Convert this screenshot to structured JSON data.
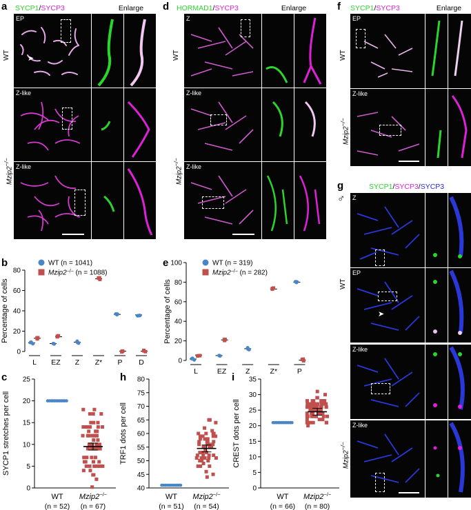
{
  "panel_letters": [
    "a",
    "b",
    "c",
    "d",
    "e",
    "f",
    "g",
    "h",
    "i"
  ],
  "headers": {
    "a": {
      "green": "SYCP1",
      "sep": "/",
      "magenta": "SYCP3",
      "enlarge": "Enlarge"
    },
    "d": {
      "green": "HORMAD1",
      "sep": "/",
      "magenta": "SYCP3",
      "enlarge": "Enlarge"
    },
    "f": {
      "green": "SYCP1",
      "sep": "/",
      "magenta": "SYCP3",
      "enlarge": "Enlarge"
    },
    "g": {
      "green": "SYCP1",
      "sep1": "/",
      "magenta": "SYCP3",
      "sep2": "/",
      "blue": "SYCP3",
      "sex": "♂"
    }
  },
  "stage_tags": {
    "a": [
      "EP",
      "Z-like",
      "Z-like"
    ],
    "d": [
      "Z",
      "Z-like",
      "Z-like"
    ],
    "f": [
      "EP",
      "Z-like"
    ],
    "g": [
      "Z",
      "EP",
      "Z-like",
      "Z-like"
    ]
  },
  "row_labels": {
    "wt": "WT",
    "mut": "Mzip2",
    "mut_sup": "−/−"
  },
  "colors": {
    "wt": "#4a86c5",
    "mut": "#c0504d",
    "green": "#2bd62b",
    "magenta": "#e020d8",
    "blue": "#2a2ae0"
  },
  "chart_data": [
    {
      "id": "b",
      "type": "scatter",
      "ylabel": "Percentage of cells",
      "ylim": [
        0,
        80
      ],
      "yticks": [
        0,
        20,
        40,
        60,
        80
      ],
      "legend": [
        {
          "name": "WT",
          "n": "(n = 1041)"
        },
        {
          "name": "Mzip2−/−",
          "n": "(n = 1088)"
        }
      ],
      "groups": [
        "L",
        "EZ",
        "Z",
        "Z*",
        "P",
        "D"
      ],
      "series": [
        {
          "name": "WT",
          "points": [
            [
              "L",
              8.5
            ],
            [
              "EZ",
              7.8
            ],
            [
              "Z",
              9.2
            ],
            [
              "P",
              36.5
            ],
            [
              "D",
              36
            ]
          ]
        },
        {
          "name": "Mzip2−/−",
          "points": [
            [
              "L",
              13
            ],
            [
              "EZ",
              14.5
            ],
            [
              "Z*",
              71.5
            ],
            [
              "P",
              0.3
            ],
            [
              "D",
              0.3
            ]
          ]
        }
      ]
    },
    {
      "id": "e",
      "type": "scatter",
      "ylabel": "Percentage of cells",
      "ylim": [
        0,
        100
      ],
      "yticks": [
        0,
        20,
        40,
        60,
        80,
        100
      ],
      "legend": [
        {
          "name": "WT",
          "n": "(n = 319)"
        },
        {
          "name": "Mzip2−/−",
          "n": "(n = 282)"
        }
      ],
      "groups": [
        "L",
        "EZ",
        "Z",
        "Z*",
        "P"
      ],
      "series": [
        {
          "name": "WT",
          "points": [
            [
              "L",
              1.5
            ],
            [
              "EZ",
              5
            ],
            [
              "Z",
              12
            ],
            [
              "P",
              80
            ]
          ]
        },
        {
          "name": "Mzip2−/−",
          "points": [
            [
              "L",
              5.5
            ],
            [
              "EZ",
              21
            ],
            [
              "Z*",
              73
            ],
            [
              "P",
              0.3
            ]
          ]
        }
      ]
    },
    {
      "id": "c",
      "type": "scatter",
      "ylabel": "SYCP1 stretches per cell",
      "ylim": [
        0,
        25
      ],
      "yticks": [
        0,
        5,
        10,
        15,
        20,
        25
      ],
      "categories": [
        {
          "name": "WT",
          "n": "(n = 52)"
        },
        {
          "name": "Mzip2−/−",
          "n": "(n = 67)"
        }
      ],
      "series": [
        {
          "name": "WT",
          "mean": 20
        },
        {
          "name": "Mzip2−/−",
          "mean": 9.5
        }
      ]
    },
    {
      "id": "h",
      "type": "scatter",
      "ylabel": "TRF1 dots per cell",
      "ylim": [
        40,
        80
      ],
      "yticks": [
        40,
        45,
        50,
        55,
        60,
        65,
        70,
        75,
        80
      ],
      "categories": [
        {
          "name": "WT",
          "n": "(n = 51)"
        },
        {
          "name": "Mzip2−/−",
          "n": "(n = 54)"
        }
      ],
      "series": [
        {
          "name": "WT",
          "mean": 41
        },
        {
          "name": "Mzip2−/−",
          "mean": 54.5
        }
      ]
    },
    {
      "id": "i",
      "type": "scatter",
      "ylabel": "CREST dots per cell",
      "ylim": [
        0,
        35
      ],
      "yticks": [
        0,
        5,
        10,
        15,
        20,
        25,
        30,
        35
      ],
      "categories": [
        {
          "name": "WT",
          "n": "(n = 66)"
        },
        {
          "name": "Mzip2−/−",
          "n": "(n = 80)"
        }
      ],
      "series": [
        {
          "name": "WT",
          "mean": 21
        },
        {
          "name": "Mzip2−/−",
          "mean": 24.5
        }
      ]
    }
  ]
}
